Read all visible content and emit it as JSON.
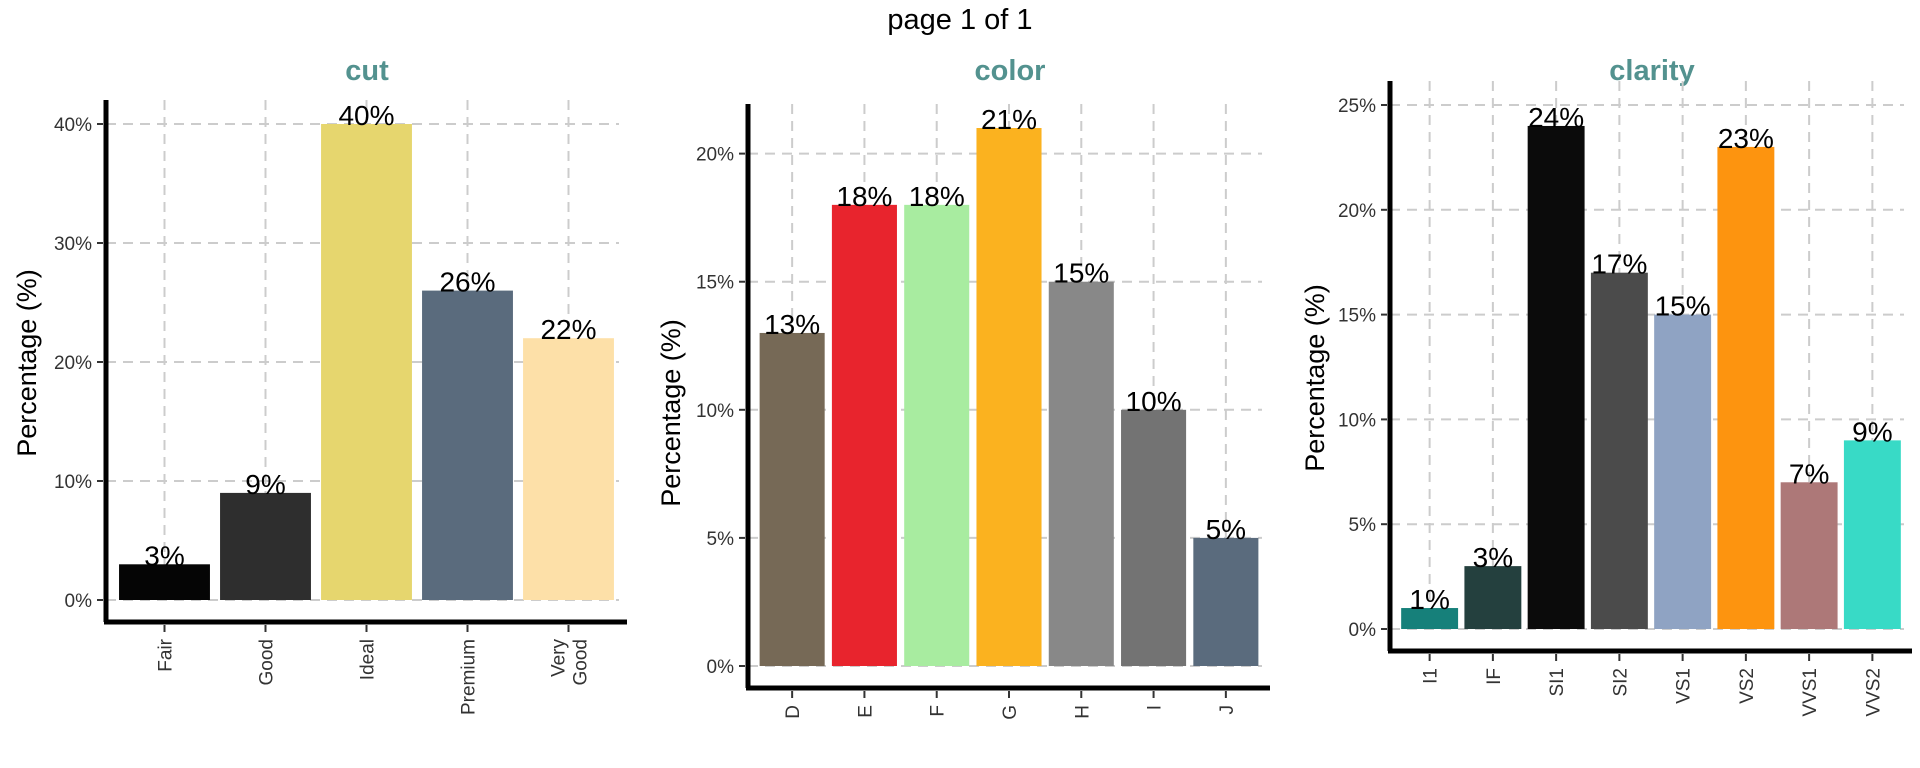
{
  "page_title": "page 1 of 1",
  "chart_data": [
    {
      "type": "bar",
      "title": "cut",
      "xlabel": "",
      "ylabel": "Percentage (%)",
      "categories": [
        "Fair",
        "Good",
        "Ideal",
        "Premium",
        "Very Good"
      ],
      "values": [
        3,
        9,
        40,
        26,
        22
      ],
      "value_labels": [
        "3%",
        "9%",
        "40%",
        "26%",
        "22%"
      ],
      "colors": [
        "#050505",
        "#2e2e2e",
        "#e6d66e",
        "#5a6b7d",
        "#fde0a8"
      ],
      "yticks": [
        0,
        10,
        20,
        30,
        40
      ],
      "ytick_labels": [
        "0%",
        "10%",
        "20%",
        "30%",
        "40%"
      ],
      "ylim": [
        0,
        40
      ],
      "grid": true
    },
    {
      "type": "bar",
      "title": "color",
      "xlabel": "",
      "ylabel": "Percentage (%)",
      "categories": [
        "D",
        "E",
        "F",
        "G",
        "H",
        "I",
        "J"
      ],
      "values": [
        13,
        18,
        18,
        21,
        15,
        10,
        5
      ],
      "value_labels": [
        "13%",
        "18%",
        "18%",
        "21%",
        "15%",
        "10%",
        "5%"
      ],
      "colors": [
        "#766956",
        "#e8242d",
        "#a8eca0",
        "#fbb21f",
        "#888888",
        "#737373",
        "#5a6b7d"
      ],
      "yticks": [
        0,
        5,
        10,
        15,
        20
      ],
      "ytick_labels": [
        "0%",
        "5%",
        "10%",
        "15%",
        "20%"
      ],
      "ylim": [
        0,
        21
      ],
      "grid": true
    },
    {
      "type": "bar",
      "title": "clarity",
      "xlabel": "",
      "ylabel": "Percentage (%)",
      "categories": [
        "I1",
        "IF",
        "SI1",
        "SI2",
        "VS1",
        "VS2",
        "VVS1",
        "VVS2"
      ],
      "values": [
        1,
        3,
        24,
        17,
        15,
        23,
        7,
        9
      ],
      "value_labels": [
        "1%",
        "3%",
        "24%",
        "17%",
        "15%",
        "23%",
        "7%",
        "9%"
      ],
      "colors": [
        "#16807a",
        "#24403e",
        "#0b0b0b",
        "#4b4b4b",
        "#8fa3c3",
        "#fd940f",
        "#ad7878",
        "#38dac6"
      ],
      "yticks": [
        0,
        5,
        10,
        15,
        20,
        25
      ],
      "ytick_labels": [
        "0%",
        "5%",
        "10%",
        "15%",
        "20%",
        "25%"
      ],
      "ylim": [
        0,
        25
      ],
      "grid": true
    }
  ]
}
